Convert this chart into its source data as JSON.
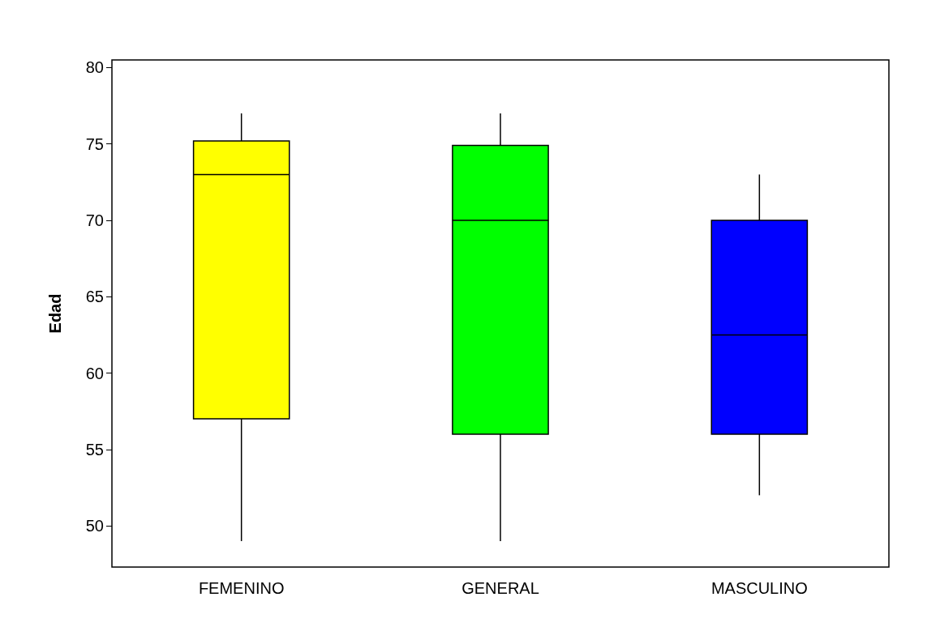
{
  "chart_data": {
    "type": "box",
    "ylabel": "Edad",
    "categories": [
      "FEMENINO",
      "GENERAL",
      "MASCULINO"
    ],
    "boxes": [
      {
        "low": 49,
        "q1": 57,
        "median": 73,
        "q3": 75.2,
        "high": 77
      },
      {
        "low": 49,
        "q1": 56,
        "median": 70,
        "q3": 74.9,
        "high": 77
      },
      {
        "low": 52,
        "q1": 56,
        "median": 62.5,
        "q3": 70,
        "high": 73
      }
    ],
    "colors": [
      "#ffff00",
      "#00ff00",
      "#0000ff"
    ],
    "ylim": [
      47.3,
      80.5
    ],
    "yticks": [
      50,
      55,
      60,
      65,
      70,
      75,
      80
    ],
    "grid": false
  }
}
